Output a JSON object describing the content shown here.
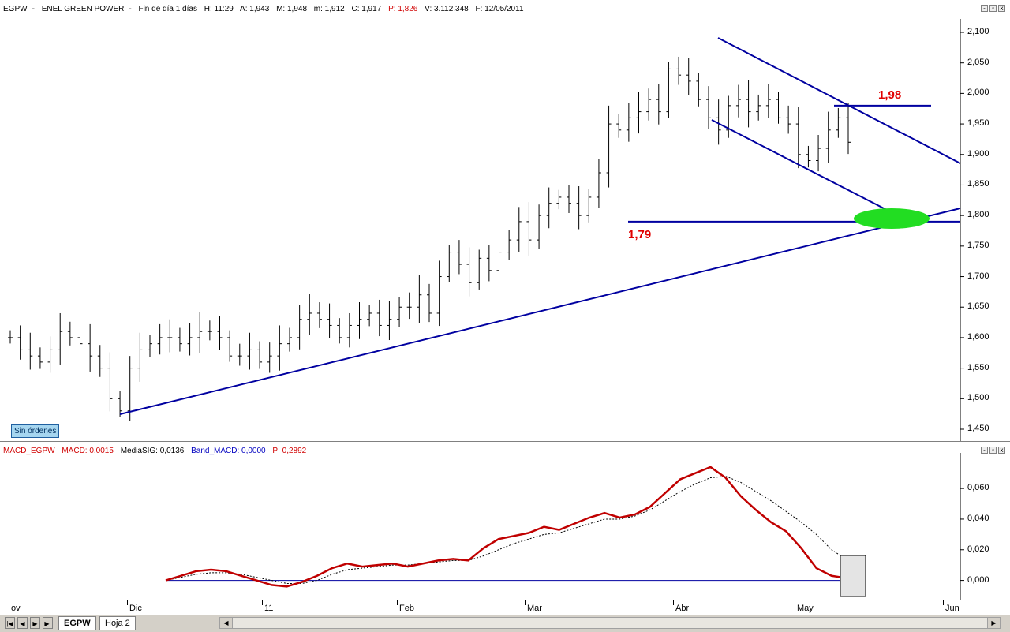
{
  "price_header": {
    "symbol": "EGPW",
    "name": "ENEL GREEN POWER",
    "period": "Fin de día 1 días",
    "h": "H: 11:29",
    "a": "A: 1,943",
    "m": "M: 1,948",
    "mn": "m: 1,912",
    "c": "C: 1,917",
    "p": "P: 1,826",
    "v": "V: 3.112.348",
    "f": "F: 12/05/2011"
  },
  "macd_header": {
    "name": "MACD_EGPW",
    "macd": "MACD: 0,0015",
    "media": "MediaSIG: 0,0136",
    "band": "Band_MACD: 0,0000",
    "p": "P: 0,2892"
  },
  "window_buttons": [
    "-",
    "▫",
    "x"
  ],
  "sin_ordenes": "Sin órdenes",
  "annotations": {
    "level_high": "1,98",
    "level_low": "1,79"
  },
  "price_axis": [
    "2,100",
    "2,050",
    "2,000",
    "1,950",
    "1,900",
    "1,850",
    "1,800",
    "1,750",
    "1,700",
    "1,650",
    "1,600",
    "1,550",
    "1,500",
    "1,450"
  ],
  "macd_axis": [
    "0,060",
    "0,040",
    "0,020",
    "0,000"
  ],
  "date_axis": [
    "ov",
    "Dic",
    "11",
    "Feb",
    "Mar",
    "Abr",
    "May",
    "Jun"
  ],
  "tabs": [
    {
      "label": "EGPW"
    },
    {
      "label": "Hoja 2"
    }
  ],
  "nav_buttons": [
    "|◀",
    "◀",
    "▶",
    "▶|"
  ],
  "colors": {
    "bars": "#000000",
    "trendline": "#0000a0",
    "annotation": "#e00000",
    "macd": "#c00000",
    "signal": "#000000",
    "highlight": "#22dd22"
  },
  "chart_data": [
    {
      "type": "ohlc",
      "y_range": [
        1.45,
        2.1
      ],
      "x_months": [
        "ov",
        "Dic",
        "11",
        "Feb",
        "Mar",
        "Abr",
        "May",
        "Jun"
      ],
      "closes_approx": [
        1.6,
        1.58,
        1.57,
        1.56,
        1.58,
        1.61,
        1.6,
        1.59,
        1.57,
        1.55,
        1.5,
        1.48,
        1.55,
        1.58,
        1.59,
        1.6,
        1.6,
        1.59,
        1.6,
        1.61,
        1.61,
        1.6,
        1.57,
        1.57,
        1.58,
        1.56,
        1.57,
        1.59,
        1.6,
        1.63,
        1.64,
        1.63,
        1.62,
        1.6,
        1.62,
        1.63,
        1.64,
        1.62,
        1.63,
        1.65,
        1.65,
        1.67,
        1.64,
        1.7,
        1.74,
        1.72,
        1.69,
        1.73,
        1.71,
        1.74,
        1.76,
        1.79,
        1.76,
        1.8,
        1.82,
        1.83,
        1.82,
        1.8,
        1.83,
        1.87,
        1.95,
        1.94,
        1.96,
        1.97,
        1.99,
        1.97,
        2.04,
        2.03,
        2.02,
        1.99,
        1.96,
        1.94,
        1.98,
        1.99,
        1.97,
        1.98,
        1.99,
        1.96,
        1.95,
        1.9,
        1.89,
        1.91,
        1.94,
        1.96,
        1.92
      ],
      "levels": [
        1.98,
        1.79
      ]
    },
    {
      "type": "line",
      "y_range": [
        -0.01,
        0.075
      ],
      "series": [
        {
          "name": "MACD",
          "values": [
            0.0,
            0.003,
            0.006,
            0.007,
            0.006,
            0.003,
            0.0,
            -0.003,
            -0.004,
            -0.001,
            0.003,
            0.008,
            0.011,
            0.009,
            0.01,
            0.011,
            0.009,
            0.011,
            0.013,
            0.014,
            0.013,
            0.021,
            0.027,
            0.029,
            0.031,
            0.035,
            0.033,
            0.037,
            0.041,
            0.044,
            0.041,
            0.043,
            0.048,
            0.057,
            0.066,
            0.07,
            0.074,
            0.067,
            0.055,
            0.046,
            0.038,
            0.032,
            0.021,
            0.008,
            0.003,
            0.0015
          ]
        },
        {
          "name": "MediaSIG",
          "values": [
            0.0,
            0.002,
            0.004,
            0.005,
            0.005,
            0.004,
            0.002,
            0.0,
            -0.002,
            -0.002,
            0.0,
            0.004,
            0.007,
            0.008,
            0.009,
            0.01,
            0.01,
            0.011,
            0.012,
            0.013,
            0.013,
            0.016,
            0.02,
            0.024,
            0.027,
            0.03,
            0.031,
            0.034,
            0.037,
            0.04,
            0.04,
            0.042,
            0.046,
            0.052,
            0.058,
            0.063,
            0.067,
            0.068,
            0.064,
            0.058,
            0.052,
            0.045,
            0.038,
            0.03,
            0.02,
            0.0136
          ]
        }
      ],
      "zero_line": 0
    }
  ]
}
